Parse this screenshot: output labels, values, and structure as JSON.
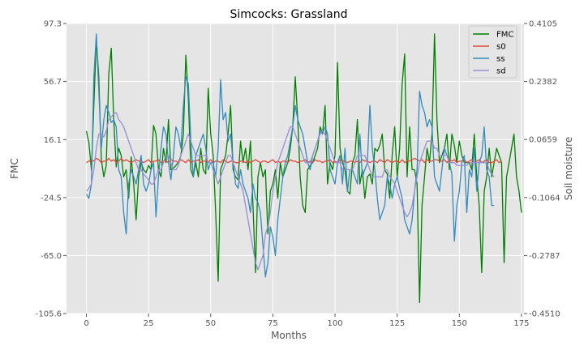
{
  "chart_data": {
    "type": "line",
    "title": "Simcocks: Grassland",
    "xlabel": "Months",
    "ylabel": "FMC",
    "ylabel_right": "Soil moisture",
    "xlim": [
      -8,
      176
    ],
    "ylim": [
      -105.6,
      97.3
    ],
    "ylim_right": [
      -0.451,
      0.4105
    ],
    "x_ticks": [
      0,
      25,
      50,
      75,
      100,
      125,
      150,
      175
    ],
    "x_tick_labels": [
      "0",
      "25",
      "50",
      "75",
      "100",
      "125",
      "150",
      "175"
    ],
    "y_ticks": [
      97.3,
      56.7,
      16.1,
      -24.5,
      -65.0,
      -105.6
    ],
    "y_tick_labels": [
      "97.3",
      "56.7",
      "16.1",
      "-24.5",
      "-65.0",
      "-105.6"
    ],
    "y_ticks_right": [
      0.4105,
      0.2382,
      0.0659,
      -0.1064,
      -0.2787,
      -0.451
    ],
    "y_tick_labels_right": [
      "0.4105",
      "0.2382",
      "0.0659",
      "-0.1064",
      "-0.2787",
      "-0.4510"
    ],
    "grid": true,
    "legend_position": "top-right",
    "colors": {
      "background": "#e5e5e5",
      "grid": "#ffffff",
      "FMC": "#008000",
      "s0": "#e24a33",
      "ss": "#348abd",
      "sd": "#988ed5"
    },
    "series": [
      {
        "name": "FMC",
        "axis": "left",
        "x_start": 0,
        "values": [
          22,
          14,
          -5,
          40,
          86,
          60,
          2,
          -10,
          -2,
          62,
          80,
          30,
          -3,
          10,
          5,
          -10,
          -5,
          -25,
          4,
          -15,
          -40,
          -10,
          0,
          -5,
          -7,
          -2,
          -5,
          26,
          20,
          -5,
          -10,
          10,
          0,
          30,
          -5,
          -4,
          -2,
          0,
          5,
          20,
          75,
          45,
          -5,
          -10,
          0,
          -10,
          10,
          -5,
          -8,
          52,
          20,
          5,
          -35,
          -83,
          -5,
          0,
          5,
          20,
          40,
          -5,
          -10,
          -12,
          15,
          0,
          10,
          -5,
          15,
          -30,
          -77,
          -10,
          0,
          -10,
          -5,
          -50,
          -20,
          -15,
          -5,
          -25,
          0,
          -10,
          -5,
          0,
          10,
          25,
          60,
          30,
          -10,
          -30,
          -35,
          -5,
          -2,
          0,
          5,
          10,
          25,
          20,
          40,
          -15,
          0,
          -5,
          5,
          70,
          10,
          0,
          -5,
          -20,
          -22,
          0,
          5,
          30,
          -15,
          -5,
          -25,
          -10,
          -8,
          -15,
          10,
          8,
          12,
          20,
          -5,
          -8,
          -25,
          5,
          25,
          -10,
          10,
          55,
          76,
          -10,
          25,
          -5,
          -5,
          -15,
          -98,
          -30,
          -10,
          10,
          0,
          20,
          90,
          30,
          0,
          5,
          10,
          20,
          -5,
          20,
          12,
          0,
          15,
          5,
          0,
          0,
          0,
          -5,
          20,
          -10,
          -30,
          -77,
          -20,
          -10,
          10,
          -10,
          0,
          10,
          5,
          0,
          -70,
          -10,
          0,
          10,
          20,
          -10,
          -20,
          -35
        ]
      },
      {
        "name": "s0",
        "axis": "left",
        "x_start": 0,
        "values": [
          0,
          1,
          2,
          1,
          3,
          2,
          0,
          1,
          1,
          3,
          1,
          2,
          0,
          1,
          3,
          1,
          2,
          1,
          0,
          1,
          2,
          1,
          1,
          0,
          1,
          2,
          0,
          1,
          1,
          2,
          0,
          1,
          1,
          0,
          2,
          1,
          1,
          0,
          2,
          1,
          0,
          2,
          0,
          1,
          1,
          2,
          0,
          1,
          1,
          0,
          2,
          0,
          1,
          1,
          0,
          2,
          1,
          0,
          1,
          1,
          0,
          0,
          1,
          1,
          0,
          1,
          0,
          1,
          2,
          1,
          0,
          1,
          1,
          0,
          1,
          2,
          0,
          1,
          0,
          1,
          1,
          0,
          2,
          1,
          1,
          0,
          1,
          1,
          2,
          0,
          1,
          0,
          2,
          1,
          1,
          0,
          1,
          1,
          2,
          0,
          1,
          0,
          2,
          1,
          1,
          0,
          1,
          1,
          0,
          1,
          0,
          2,
          1,
          1,
          0,
          1,
          1,
          0,
          2,
          1,
          0,
          2,
          1,
          0,
          1,
          1,
          0,
          2,
          0,
          1,
          1,
          2,
          3,
          2,
          1,
          2,
          0,
          2,
          1,
          1,
          2,
          2,
          1,
          1,
          2,
          0,
          2,
          1,
          2,
          0,
          1,
          1,
          2,
          0,
          1,
          2,
          0,
          1,
          2,
          0,
          1,
          2,
          0,
          0,
          1,
          2,
          0,
          1
        ]
      },
      {
        "name": "ss",
        "axis": "left",
        "x_start": 0,
        "values": [
          -22,
          -25,
          -15,
          60,
          90,
          50,
          10,
          30,
          40,
          35,
          28,
          30,
          25,
          -5,
          -10,
          -35,
          -50,
          -15,
          -5,
          -10,
          -15,
          -5,
          5,
          -15,
          -20,
          -15,
          -5,
          0,
          -38,
          -10,
          10,
          25,
          20,
          0,
          -12,
          5,
          25,
          20,
          10,
          40,
          60,
          55,
          15,
          -10,
          5,
          10,
          15,
          20,
          10,
          -5,
          0,
          0,
          -10,
          10,
          58,
          30,
          35,
          15,
          20,
          0,
          -15,
          -18,
          -5,
          -15,
          -20,
          -25,
          -35,
          -15,
          -25,
          -28,
          -35,
          -58,
          -80,
          -70,
          -45,
          -52,
          -65,
          -40,
          -25,
          -10,
          0,
          5,
          15,
          25,
          40,
          30,
          25,
          20,
          10,
          0,
          -5,
          5,
          10,
          15,
          22,
          20,
          25,
          20,
          -5,
          -10,
          -15,
          0,
          5,
          -15,
          10,
          -20,
          -5,
          -5,
          -10,
          -15,
          20,
          -10,
          -5,
          0,
          40,
          10,
          -5,
          -25,
          -40,
          -35,
          -30,
          -10,
          -15,
          -25,
          -15,
          -10,
          -18,
          -25,
          -40,
          -45,
          -50,
          -40,
          -20,
          -5,
          50,
          40,
          35,
          25,
          30,
          25,
          -10,
          -15,
          -20,
          -5,
          10,
          5,
          0,
          -8,
          -55,
          -30,
          -20,
          0,
          5,
          -35,
          -5,
          -10,
          10,
          -20,
          0,
          5,
          25,
          -5,
          -10,
          -30,
          -30
        ]
      },
      {
        "name": "sd",
        "axis": "left",
        "x_start": 0,
        "values": [
          -20,
          -18,
          -15,
          -5,
          10,
          20,
          20,
          18,
          22,
          30,
          32,
          34,
          35,
          30,
          28,
          25,
          20,
          15,
          10,
          5,
          0,
          -5,
          -5,
          -8,
          -10,
          -12,
          -15,
          -15,
          -10,
          -5,
          -5,
          0,
          5,
          5,
          0,
          -5,
          -5,
          -2,
          5,
          10,
          15,
          20,
          15,
          10,
          5,
          5,
          5,
          5,
          5,
          0,
          0,
          -5,
          -10,
          -15,
          -10,
          -5,
          0,
          5,
          5,
          0,
          -5,
          -10,
          -15,
          -20,
          -30,
          -40,
          -50,
          -60,
          -70,
          -75,
          -70,
          -65,
          -50,
          -45,
          -35,
          -20,
          -10,
          0,
          5,
          10,
          15,
          20,
          25,
          25,
          20,
          15,
          10,
          5,
          0,
          0,
          0,
          5,
          10,
          15,
          20,
          22,
          20,
          15,
          10,
          5,
          0,
          0,
          0,
          -5,
          -5,
          -5,
          -5,
          -5,
          0,
          5,
          5,
          5,
          5,
          0,
          -5,
          -10,
          -10,
          -10,
          -10,
          -10,
          -5,
          -5,
          -10,
          -12,
          -15,
          -20,
          -25,
          -30,
          -35,
          -38,
          -35,
          -30,
          -20,
          -10,
          0,
          5,
          10,
          15,
          15,
          15,
          10,
          10,
          5,
          5,
          5,
          5,
          0,
          0,
          0,
          -2,
          -2,
          -2,
          -2,
          -2,
          0,
          0,
          0,
          0,
          0,
          0,
          0,
          0,
          -5,
          -8,
          -10
        ]
      }
    ]
  }
}
